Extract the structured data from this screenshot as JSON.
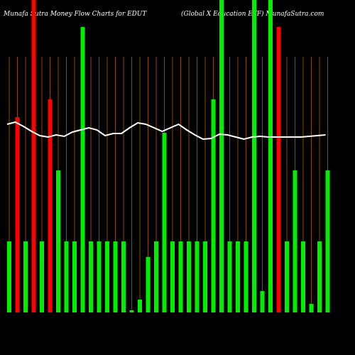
{
  "chart_data": {
    "type": "bar",
    "title": "Munafa Sutra  Money Flow  Charts for EDUT",
    "subtitle": "(Global X  Education  ETF) MunafaSutra.com",
    "series": [
      {
        "name": "Money Flow",
        "values": [
          100,
          275,
          100,
          440,
          100,
          300,
          200,
          100,
          100,
          402,
          100,
          100,
          100,
          100,
          100,
          3,
          18,
          78,
          100,
          253,
          100,
          100,
          100,
          100,
          100,
          300,
          440,
          100,
          100,
          100,
          440,
          30,
          440,
          402,
          100,
          200,
          100,
          12,
          100,
          200
        ],
        "colors": [
          "#00ee00",
          "#ff0000",
          "#00ee00",
          "#ff0000",
          "#00ee00",
          "#ff0000",
          "#00ee00",
          "#00ee00",
          "#00ee00",
          "#00ee00",
          "#00ee00",
          "#00ee00",
          "#00ee00",
          "#00ee00",
          "#00ee00",
          "#00ee00",
          "#00ee00",
          "#00ee00",
          "#00ee00",
          "#00ee00",
          "#00ee00",
          "#00ee00",
          "#00ee00",
          "#00ee00",
          "#00ee00",
          "#00ee00",
          "#00ee00",
          "#00ee00",
          "#00ee00",
          "#00ee00",
          "#00ee00",
          "#00ee00",
          "#00ee00",
          "#ff0000",
          "#00ee00",
          "#00ee00",
          "#00ee00",
          "#00ee00",
          "#00ee00",
          "#00ee00"
        ]
      },
      {
        "name": "Price",
        "type": "line",
        "color": "#ffffff",
        "values": [
          265,
          268,
          262,
          255,
          249,
          247,
          250,
          248,
          254,
          257,
          260,
          257,
          249,
          252,
          252,
          260,
          267,
          265,
          260,
          255,
          260,
          265,
          257,
          250,
          244,
          245,
          251,
          250,
          247,
          244,
          247,
          248,
          247,
          247,
          247,
          247,
          247,
          248,
          249,
          250
        ]
      }
    ],
    "ylim": [
      0,
      440
    ],
    "grid_color": "#8a4a00"
  }
}
